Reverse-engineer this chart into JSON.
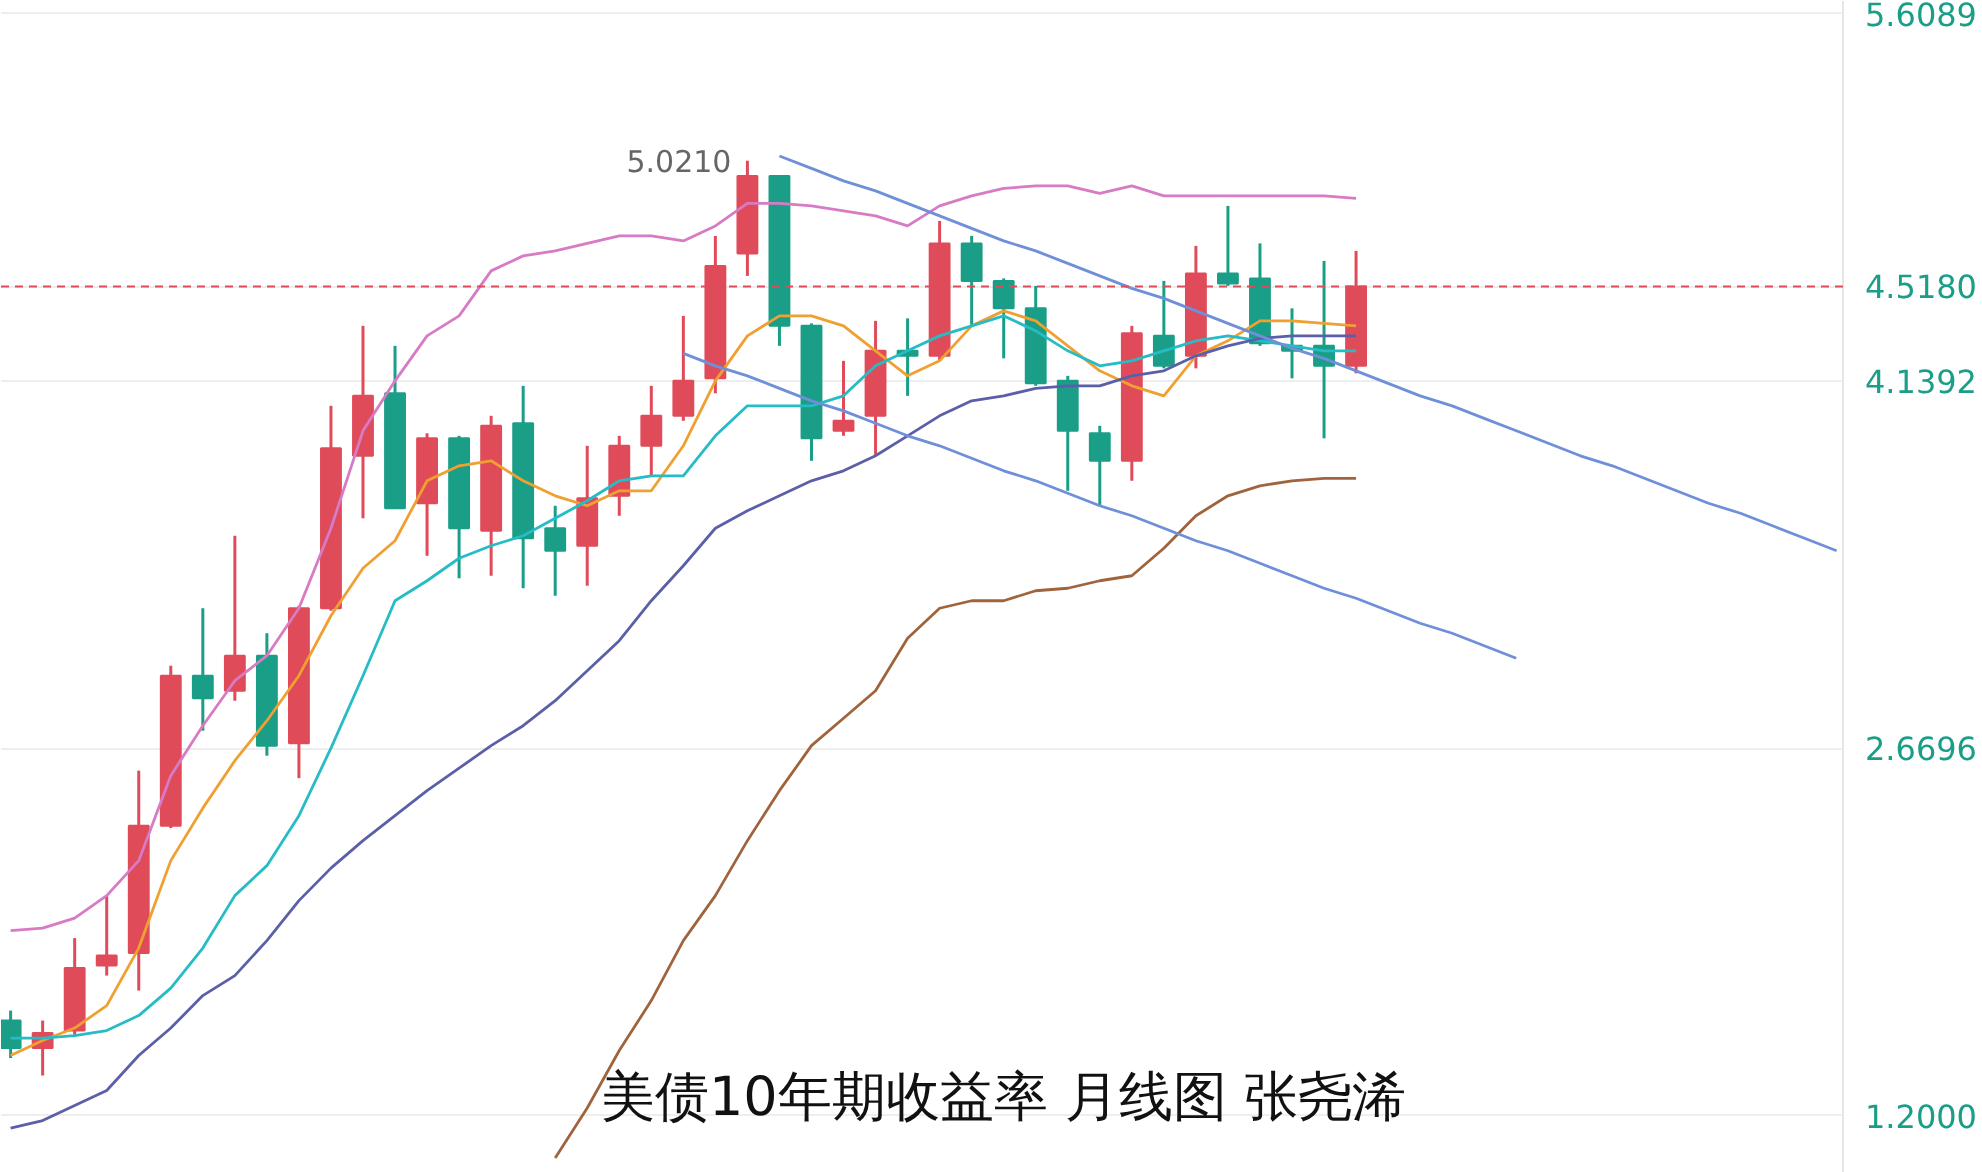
{
  "chart_data": {
    "type": "candlestick",
    "title": "美债10年期收益率 月线图 张尧浠",
    "categories": [
      null,
      null,
      null,
      null,
      null,
      null,
      null,
      null,
      null,
      null,
      null,
      null,
      null,
      null,
      null,
      null,
      null,
      null,
      null,
      null,
      null,
      null,
      null,
      null,
      null,
      null,
      null,
      null,
      null,
      null,
      null,
      null,
      null,
      null,
      null,
      null,
      null,
      null,
      null,
      null,
      null,
      null,
      null,
      null,
      null,
      null,
      null,
      null,
      null,
      null,
      null,
      null,
      null,
      null,
      null,
      null,
      null,
      null
    ],
    "ohlc": [
      [
        1.58,
        1.62,
        1.43,
        1.47
      ],
      [
        1.47,
        1.58,
        1.36,
        1.53
      ],
      [
        1.54,
        1.91,
        1.52,
        1.79
      ],
      [
        1.8,
        2.08,
        1.76,
        1.84
      ],
      [
        1.85,
        2.58,
        1.7,
        2.36
      ],
      [
        2.36,
        3.0,
        2.35,
        2.96
      ],
      [
        2.96,
        3.23,
        2.74,
        2.87
      ],
      [
        2.9,
        3.52,
        2.86,
        3.04
      ],
      [
        3.04,
        3.13,
        2.64,
        2.68
      ],
      [
        2.69,
        3.24,
        2.55,
        3.23
      ],
      [
        3.23,
        4.04,
        3.22,
        3.87
      ],
      [
        3.84,
        4.36,
        3.59,
        4.08
      ],
      [
        4.09,
        4.28,
        3.63,
        3.63
      ],
      [
        3.65,
        3.93,
        3.44,
        3.91
      ],
      [
        3.91,
        3.92,
        3.35,
        3.55
      ],
      [
        3.54,
        4.0,
        3.36,
        3.96
      ],
      [
        3.97,
        4.12,
        3.31,
        3.51
      ],
      [
        3.55,
        3.64,
        3.28,
        3.46
      ],
      [
        3.48,
        3.88,
        3.32,
        3.67
      ],
      [
        3.68,
        3.92,
        3.6,
        3.88
      ],
      [
        3.88,
        4.12,
        3.76,
        4.0
      ],
      [
        4.0,
        4.4,
        3.98,
        4.14
      ],
      [
        4.15,
        4.72,
        4.09,
        4.6
      ],
      [
        4.65,
        5.021,
        4.56,
        4.96
      ],
      [
        4.96,
        4.96,
        4.28,
        4.36
      ],
      [
        4.36,
        4.37,
        3.82,
        3.91
      ],
      [
        3.94,
        4.22,
        3.92,
        3.98
      ],
      [
        4.0,
        4.38,
        3.84,
        4.26
      ],
      [
        4.26,
        4.39,
        4.08,
        4.24
      ],
      [
        4.24,
        4.78,
        4.22,
        4.69
      ],
      [
        4.69,
        4.72,
        4.36,
        4.54
      ],
      [
        4.54,
        4.55,
        4.23,
        4.43
      ],
      [
        4.43,
        4.52,
        4.12,
        4.13
      ],
      [
        4.14,
        4.16,
        3.7,
        3.94
      ],
      [
        3.93,
        3.96,
        3.64,
        3.82
      ],
      [
        3.82,
        4.36,
        3.74,
        4.33
      ],
      [
        4.32,
        4.54,
        4.19,
        4.2
      ],
      [
        4.24,
        4.68,
        4.19,
        4.57
      ],
      [
        4.57,
        4.84,
        4.52,
        4.53
      ],
      [
        4.55,
        4.69,
        4.28,
        4.29
      ],
      [
        4.28,
        4.43,
        4.15,
        4.26
      ],
      [
        4.28,
        4.62,
        3.91,
        4.2
      ],
      [
        4.2,
        4.66,
        4.17,
        4.518
      ],
      null,
      null,
      null,
      null,
      null,
      null,
      null,
      null,
      null,
      null,
      null,
      null,
      null,
      null,
      null
    ],
    "colors": [
      "#1a9e87",
      "#e04b5a",
      "#e04b5a",
      "#e04b5a",
      "#e04b5a",
      "#e04b5a",
      "#1a9e87",
      "#e04b5a",
      "#1a9e87",
      "#e04b5a",
      "#e04b5a",
      "#e04b5a",
      "#1a9e87",
      "#e04b5a",
      "#1a9e87",
      "#e04b5a",
      "#1a9e87",
      "#1a9e87",
      "#e04b5a",
      "#e04b5a",
      "#e04b5a",
      "#e04b5a",
      "#e04b5a",
      "#e04b5a",
      "#1a9e87",
      "#1a9e87",
      "#e04b5a",
      "#e04b5a",
      "#1a9e87",
      "#e04b5a",
      "#1a9e87",
      "#1a9e87",
      "#1a9e87",
      "#1a9e87",
      "#1a9e87",
      "#e04b5a",
      "#1a9e87",
      "#e04b5a",
      "#1a9e87",
      "#1a9e87",
      "#1a9e87",
      "#1a9e87",
      "#e04b5a",
      null,
      null,
      null,
      null,
      null,
      null,
      null,
      null,
      null,
      null,
      null,
      null,
      null,
      null,
      null
    ],
    "series": [
      {
        "type": "line",
        "color": "#d67bc4",
        "values": [
          1.94,
          1.95,
          1.99,
          2.08,
          2.22,
          2.56,
          2.76,
          2.94,
          3.04,
          3.23,
          3.55,
          3.94,
          4.14,
          4.32,
          4.4,
          4.58,
          4.64,
          4.66,
          4.69,
          4.72,
          4.72,
          4.7,
          4.76,
          4.85,
          4.85,
          4.84,
          4.82,
          4.8,
          4.76,
          4.84,
          4.88,
          4.91,
          4.92,
          4.92,
          4.89,
          4.92,
          4.88,
          4.88,
          4.88,
          4.88,
          4.88,
          4.88,
          4.87,
          null,
          null,
          null,
          null,
          null,
          null,
          null,
          null,
          null,
          null,
          null,
          null,
          null,
          null,
          null
        ]
      },
      {
        "type": "line",
        "color": "#f0a030",
        "values": [
          1.44,
          1.5,
          1.55,
          1.64,
          1.87,
          2.22,
          2.43,
          2.62,
          2.78,
          2.96,
          3.2,
          3.39,
          3.5,
          3.74,
          3.8,
          3.82,
          3.74,
          3.68,
          3.64,
          3.7,
          3.7,
          3.88,
          4.14,
          4.32,
          4.4,
          4.4,
          4.36,
          4.26,
          4.16,
          4.22,
          4.36,
          4.42,
          4.38,
          4.28,
          4.18,
          4.12,
          4.08,
          4.24,
          4.3,
          4.38,
          4.38,
          4.37,
          4.36,
          null,
          null,
          null,
          null,
          null,
          null,
          null,
          null,
          null,
          null,
          null,
          null,
          null,
          null,
          null
        ]
      },
      {
        "type": "line",
        "color": "#26bcc6",
        "values": [
          1.51,
          1.51,
          1.52,
          1.54,
          1.6,
          1.71,
          1.87,
          2.08,
          2.2,
          2.4,
          2.67,
          2.96,
          3.26,
          3.34,
          3.43,
          3.48,
          3.52,
          3.59,
          3.66,
          3.74,
          3.76,
          3.76,
          3.92,
          4.04,
          4.04,
          4.04,
          4.08,
          4.2,
          4.26,
          4.32,
          4.36,
          4.4,
          4.34,
          4.26,
          4.2,
          4.22,
          4.26,
          4.3,
          4.32,
          4.3,
          4.28,
          4.26,
          4.26,
          null,
          null,
          null,
          null,
          null,
          null,
          null,
          null,
          null,
          null,
          null,
          null,
          null,
          null,
          null
        ]
      },
      {
        "type": "line",
        "color": "#5b5fa8",
        "values": [
          1.15,
          1.18,
          1.24,
          1.3,
          1.44,
          1.55,
          1.68,
          1.76,
          1.9,
          2.06,
          2.19,
          2.3,
          2.4,
          2.5,
          2.59,
          2.68,
          2.76,
          2.86,
          2.98,
          3.1,
          3.26,
          3.4,
          3.55,
          3.62,
          3.68,
          3.74,
          3.78,
          3.84,
          3.92,
          4.0,
          4.06,
          4.08,
          4.11,
          4.12,
          4.12,
          4.16,
          4.18,
          4.24,
          4.28,
          4.31,
          4.32,
          4.32,
          4.32,
          null,
          null,
          null,
          null,
          null,
          null,
          null,
          null,
          null,
          null,
          null,
          null,
          null,
          null,
          null
        ]
      },
      {
        "type": "line",
        "color": "#a0643c",
        "values": [
          null,
          null,
          null,
          null,
          null,
          null,
          null,
          null,
          null,
          null,
          null,
          null,
          null,
          null,
          null,
          null,
          null,
          1.03,
          1.23,
          1.46,
          1.66,
          1.9,
          2.08,
          2.3,
          2.5,
          2.68,
          2.79,
          2.9,
          3.11,
          3.23,
          3.26,
          3.26,
          3.3,
          3.31,
          3.34,
          3.36,
          3.47,
          3.6,
          3.68,
          3.72,
          3.74,
          3.75,
          3.75,
          null,
          null,
          null,
          null,
          null,
          null,
          null,
          null,
          null,
          null,
          null,
          null,
          null,
          null,
          null
        ]
      },
      {
        "type": "line",
        "color": "#6f8fd8",
        "values": [
          null,
          null,
          null,
          null,
          null,
          null,
          null,
          null,
          null,
          null,
          null,
          null,
          null,
          null,
          null,
          null,
          null,
          null,
          null,
          null,
          null,
          null,
          null,
          null,
          5.04,
          4.99,
          4.94,
          4.9,
          4.85,
          4.8,
          4.75,
          4.7,
          4.66,
          4.61,
          4.56,
          4.51,
          4.47,
          4.42,
          4.37,
          4.32,
          4.27,
          4.23,
          4.18,
          4.13,
          4.08,
          4.04,
          3.99,
          3.94,
          3.89,
          3.84,
          3.8,
          3.75,
          3.7,
          3.65,
          3.61,
          3.56,
          3.51,
          3.46
        ]
      },
      {
        "type": "line",
        "color": "#6f8fd8",
        "values": [
          null,
          null,
          null,
          null,
          null,
          null,
          null,
          null,
          null,
          null,
          null,
          null,
          null,
          null,
          null,
          null,
          null,
          null,
          null,
          null,
          null,
          4.25,
          4.2,
          4.16,
          4.11,
          4.06,
          4.02,
          3.97,
          3.92,
          3.88,
          3.83,
          3.78,
          3.74,
          3.69,
          3.64,
          3.6,
          3.55,
          3.5,
          3.46,
          3.41,
          3.36,
          3.31,
          3.27,
          3.22,
          3.17,
          3.13,
          3.08,
          3.03,
          null,
          null,
          null,
          null,
          null,
          null,
          null,
          null,
          null,
          null
        ]
      }
    ],
    "ylim": [
      0.97,
      5.66
    ],
    "yticks": [
      {
        "value": 5.6089,
        "label": "5.6089"
      },
      {
        "value": 4.1392,
        "label": "4.1392"
      },
      {
        "value": 2.6696,
        "label": "2.6696"
      },
      {
        "value": 1.2,
        "label": "1.2000"
      }
    ],
    "ref_lines": [
      {
        "axis": "y",
        "value": 4.518,
        "label": "4.5180",
        "color": "#e04b5a",
        "line_style": "dashed"
      }
    ],
    "annotations": [
      "5.0210"
    ],
    "grid": "y",
    "tick_labels": "y",
    "marker": "none"
  }
}
